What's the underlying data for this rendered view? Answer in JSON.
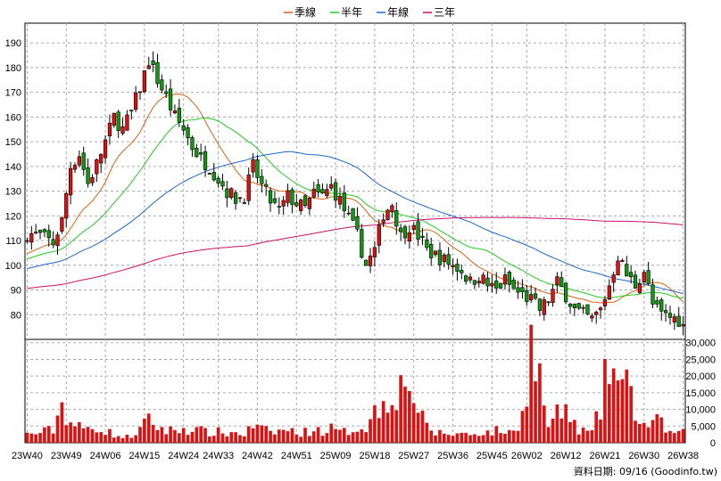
{
  "chart_data": {
    "type": "candlestick",
    "legend": [
      {
        "name": "季線",
        "color": "#e06010"
      },
      {
        "name": "半年",
        "color": "#22cc22"
      },
      {
        "name": "年線",
        "color": "#1f66cc"
      },
      {
        "name": "三年",
        "color": "#cc1166"
      }
    ],
    "price_axis": {
      "ylim": [
        70,
        198
      ],
      "ticks": [
        80,
        90,
        100,
        110,
        120,
        130,
        140,
        150,
        160,
        170,
        180,
        190
      ]
    },
    "volume_axis": {
      "ylim": [
        0,
        31000
      ],
      "ticks": [
        0,
        5000,
        10000,
        15000,
        20000,
        25000,
        30000
      ],
      "tick_labels": [
        "0",
        "5,000",
        "10,000",
        "15,000",
        "20,000",
        "25,000",
        "30,000"
      ]
    },
    "x_labels": [
      "23W40",
      "23W49",
      "24W06",
      "24W15",
      "24W24",
      "24W33",
      "24W42",
      "24W51",
      "25W09",
      "25W18",
      "25W27",
      "25W36",
      "25W45",
      "26W02",
      "26W12",
      "26W21",
      "26W30",
      "26W38"
    ],
    "close_anchors": [
      [
        0,
        113
      ],
      [
        3,
        112
      ],
      [
        6,
        109
      ],
      [
        8,
        118
      ],
      [
        10,
        140
      ],
      [
        12,
        145
      ],
      [
        14,
        133
      ],
      [
        16,
        141
      ],
      [
        18,
        150
      ],
      [
        20,
        160
      ],
      [
        22,
        155
      ],
      [
        24,
        162
      ],
      [
        26,
        172
      ],
      [
        28,
        183
      ],
      [
        30,
        175
      ],
      [
        32,
        168
      ],
      [
        34,
        160
      ],
      [
        36,
        155
      ],
      [
        38,
        148
      ],
      [
        40,
        143
      ],
      [
        42,
        140
      ],
      [
        44,
        135
      ],
      [
        46,
        130
      ],
      [
        48,
        127
      ],
      [
        50,
        128
      ],
      [
        52,
        140
      ],
      [
        54,
        132
      ],
      [
        56,
        126
      ],
      [
        58,
        122
      ],
      [
        60,
        128
      ],
      [
        62,
        125
      ],
      [
        64,
        123
      ],
      [
        66,
        129
      ],
      [
        68,
        128
      ],
      [
        70,
        132
      ],
      [
        72,
        126
      ],
      [
        74,
        119
      ],
      [
        76,
        112
      ],
      [
        78,
        100
      ],
      [
        80,
        106
      ],
      [
        82,
        121
      ],
      [
        84,
        125
      ],
      [
        86,
        112
      ],
      [
        88,
        116
      ],
      [
        90,
        112
      ],
      [
        92,
        106
      ],
      [
        94,
        104
      ],
      [
        96,
        102
      ],
      [
        98,
        100
      ],
      [
        100,
        98
      ],
      [
        102,
        93
      ],
      [
        104,
        96
      ],
      [
        106,
        92
      ],
      [
        108,
        90
      ],
      [
        110,
        94
      ],
      [
        112,
        90
      ],
      [
        114,
        88
      ],
      [
        116,
        86
      ],
      [
        118,
        82
      ],
      [
        120,
        86
      ],
      [
        122,
        93
      ],
      [
        124,
        88
      ],
      [
        126,
        82
      ],
      [
        128,
        80
      ],
      [
        130,
        78
      ],
      [
        132,
        82
      ],
      [
        134,
        92
      ],
      [
        136,
        104
      ],
      [
        138,
        96
      ],
      [
        140,
        92
      ],
      [
        142,
        98
      ],
      [
        144,
        84
      ],
      [
        146,
        80
      ],
      [
        148,
        79
      ],
      [
        150,
        78
      ],
      [
        151,
        75
      ]
    ],
    "volume_anchors": [
      [
        0,
        2500
      ],
      [
        3,
        3000
      ],
      [
        6,
        4000
      ],
      [
        8,
        11500
      ],
      [
        10,
        6000
      ],
      [
        12,
        4500
      ],
      [
        14,
        4000
      ],
      [
        16,
        5000
      ],
      [
        18,
        3500
      ],
      [
        20,
        2500
      ],
      [
        22,
        1500
      ],
      [
        24,
        2000
      ],
      [
        26,
        4000
      ],
      [
        28,
        6500
      ],
      [
        30,
        5000
      ],
      [
        32,
        3500
      ],
      [
        34,
        3800
      ],
      [
        36,
        4200
      ],
      [
        38,
        4000
      ],
      [
        40,
        3500
      ],
      [
        42,
        3000
      ],
      [
        44,
        3200
      ],
      [
        46,
        2800
      ],
      [
        48,
        3000
      ],
      [
        50,
        2500
      ],
      [
        52,
        5000
      ],
      [
        54,
        4000
      ],
      [
        56,
        3000
      ],
      [
        58,
        3500
      ],
      [
        60,
        3800
      ],
      [
        62,
        3000
      ],
      [
        64,
        3200
      ],
      [
        66,
        4000
      ],
      [
        68,
        3500
      ],
      [
        70,
        4200
      ],
      [
        72,
        3000
      ],
      [
        74,
        3500
      ],
      [
        76,
        4500
      ],
      [
        78,
        5000
      ],
      [
        80,
        9000
      ],
      [
        82,
        12000
      ],
      [
        84,
        17000
      ],
      [
        86,
        16000
      ],
      [
        88,
        20000
      ],
      [
        90,
        9000
      ],
      [
        92,
        4500
      ],
      [
        94,
        3000
      ],
      [
        96,
        2800
      ],
      [
        98,
        2500
      ],
      [
        100,
        2800
      ],
      [
        102,
        2500
      ],
      [
        104,
        3200
      ],
      [
        106,
        3000
      ],
      [
        108,
        3500
      ],
      [
        110,
        3500
      ],
      [
        112,
        3000
      ],
      [
        114,
        9000
      ],
      [
        116,
        29000
      ],
      [
        118,
        19000
      ],
      [
        120,
        5000
      ],
      [
        122,
        8000
      ],
      [
        124,
        10000
      ],
      [
        126,
        5000
      ],
      [
        128,
        3500
      ],
      [
        130,
        3000
      ],
      [
        132,
        10000
      ],
      [
        134,
        25000
      ],
      [
        136,
        18000
      ],
      [
        138,
        16000
      ],
      [
        140,
        10000
      ],
      [
        142,
        5000
      ],
      [
        144,
        6500
      ],
      [
        146,
        5500
      ],
      [
        148,
        3000
      ],
      [
        150,
        2500
      ],
      [
        151,
        3000
      ]
    ],
    "footer": "資料日期: 09/16  (Goodinfo.tw)"
  }
}
